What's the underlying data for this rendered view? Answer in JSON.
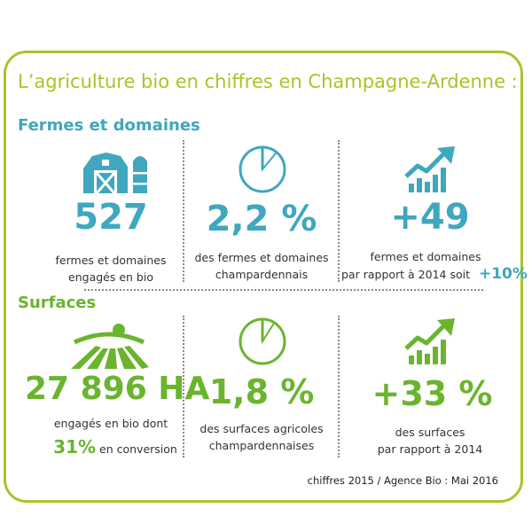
{
  "title": "L’agriculture bio en chiffres en Champagne-Ardenne :",
  "sections": {
    "fermes": {
      "heading": "Fermes et domaines",
      "stats": [
        {
          "value": "527",
          "caption_lines": [
            "fermes et domaines",
            "engagés en bio"
          ]
        },
        {
          "value": "2,2 %",
          "caption_lines": [
            "des fermes et domaines",
            "champardennais"
          ]
        },
        {
          "value": "+49",
          "caption_line1": "fermes et domaines",
          "caption_line2": "par rapport à 2014 soit",
          "highlight": "+10%"
        }
      ]
    },
    "surfaces": {
      "heading": "Surfaces",
      "stats": [
        {
          "value": "27 896 HA",
          "caption_line1": "engagés en bio dont",
          "highlight": "31%",
          "caption_line2": "en conversion"
        },
        {
          "value": "1,8 %",
          "caption_lines": [
            "des surfaces agricoles",
            "champardennaises"
          ]
        },
        {
          "value": "+33 %",
          "caption_lines": [
            "des surfaces",
            "par rapport à 2014"
          ]
        }
      ]
    }
  },
  "footer": "chiffres 2015 / Agence Bio : Mai 2016",
  "colors": {
    "blue": "#3fa7be",
    "green": "#6ab42e",
    "frame": "#a7c528"
  },
  "icons": [
    "barn-silo-icon",
    "pie-clock-icon",
    "growth-chart-icon",
    "field-sun-icon"
  ],
  "pie_fractions": {
    "fermes": 0.022,
    "surfaces": 0.018
  }
}
